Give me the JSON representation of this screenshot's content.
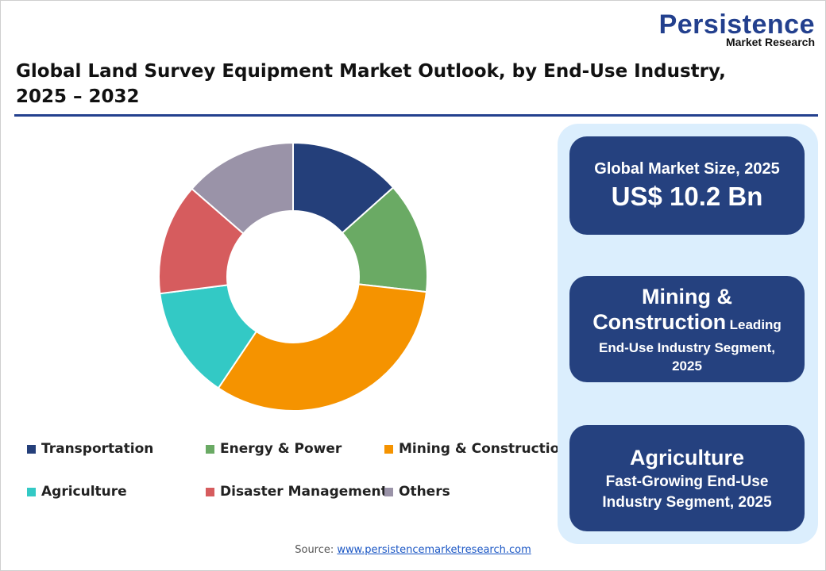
{
  "logo": {
    "main": "Persistence",
    "sub": "Market Research"
  },
  "title": "Global Land Survey Equipment Market Outlook, by End-Use Industry, 2025 – 2032",
  "chart_data": {
    "type": "pie",
    "donut": true,
    "title": "Global Land Survey Equipment Market Outlook, by End-Use Industry, 2025 – 2032",
    "categories": [
      "Transportation",
      "Energy & Power",
      "Mining & Construction",
      "Agriculture",
      "Disaster Management",
      "Others"
    ],
    "values": [
      13.4,
      13.4,
      32.6,
      13.6,
      13.4,
      13.6
    ],
    "unit": "%",
    "colors": [
      "#243f7a",
      "#6aaa64",
      "#f59300",
      "#33c9c5",
      "#d65c5e",
      "#9a93a8"
    ],
    "legend_position": "bottom"
  },
  "cards": {
    "market": {
      "label": "Global Market Size, 2025",
      "value": "US$ 10.2 Bn"
    },
    "leading": {
      "name_line1": "Mining &",
      "name_line2": "Construction",
      "desc1": "Leading",
      "desc2": "End-Use Industry Segment,",
      "desc3": "2025"
    },
    "fastest": {
      "name": "Agriculture",
      "desc1": "Fast-Growing End-Use",
      "desc2": "Industry Segment, 2025"
    }
  },
  "source": {
    "label": "Source:",
    "link": "www.persistencemarketresearch.com"
  }
}
